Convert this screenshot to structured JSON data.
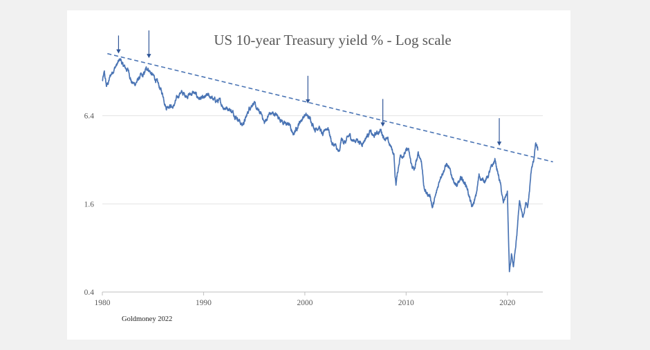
{
  "colors": {
    "series": "#4a74b4",
    "trendline": "#4a74b4",
    "arrow": "#2f5597",
    "grid": "#e3e3e3",
    "axis": "#bfbfbf",
    "text": "#595959"
  },
  "chart_data": {
    "type": "line",
    "title": "US 10-year Treasury yield % - Log scale",
    "source": "Goldmoney 2022",
    "xlabel": "",
    "ylabel": "",
    "x_scale": "time (years)",
    "y_scale": "log",
    "xlim": [
      1980,
      2023.5
    ],
    "ylim": [
      0.4,
      25.6
    ],
    "x_ticks": [
      "1980",
      "1990",
      "2000",
      "2010",
      "2020"
    ],
    "y_ticks": [
      "0.4",
      "1.6",
      "6.4"
    ],
    "grid": "horizontal",
    "legend": "none",
    "series": [
      {
        "x": [
          1980.0,
          1980.2,
          1980.4,
          1980.6,
          1980.8,
          1981.0,
          1981.2,
          1981.5,
          1981.7,
          1981.8,
          1982.0,
          1982.3,
          1982.6,
          1982.9,
          1983.2,
          1983.5,
          1983.8,
          1984.0,
          1984.3,
          1984.5,
          1984.8,
          1985.2,
          1985.6,
          1986.0,
          1986.3,
          1986.6,
          1987.0,
          1987.3,
          1987.7,
          1987.9,
          1988.3,
          1988.7,
          1989.0,
          1989.5,
          1990.0,
          1990.4,
          1990.7,
          1991.0,
          1991.6,
          1992.0,
          1992.5,
          1993.0,
          1993.5,
          1993.8,
          1994.2,
          1994.5,
          1994.9,
          1995.3,
          1995.8,
          1996.0,
          1996.5,
          1997.0,
          1997.5,
          1998.0,
          1998.5,
          1998.8,
          1999.0,
          1999.5,
          2000.0,
          2000.3,
          2000.6,
          2001.0,
          2001.4,
          2001.8,
          2002.0,
          2002.3,
          2002.7,
          2003.0,
          2003.4,
          2003.6,
          2004.0,
          2004.4,
          2004.8,
          2005.2,
          2005.6,
          2006.0,
          2006.4,
          2006.8,
          2007.0,
          2007.5,
          2007.8,
          2008.2,
          2008.5,
          2008.8,
          2008.9,
          2009.0,
          2009.4,
          2009.8,
          2010.2,
          2010.5,
          2010.8,
          2011.2,
          2011.5,
          2011.8,
          2012.0,
          2012.4,
          2012.6,
          2013.0,
          2013.4,
          2013.7,
          2014.0,
          2014.5,
          2015.0,
          2015.5,
          2016.0,
          2016.5,
          2016.9,
          2017.2,
          2017.6,
          2018.0,
          2018.4,
          2018.8,
          2019.0,
          2019.3,
          2019.6,
          2019.8,
          2020.0,
          2020.1,
          2020.2,
          2020.4,
          2020.6,
          2020.8,
          2021.0,
          2021.2,
          2021.5,
          2021.8,
          2022.0,
          2022.2,
          2022.4,
          2022.6,
          2022.8,
          2023.0
        ],
        "values": [
          11.0,
          12.5,
          10.2,
          10.8,
          12.0,
          12.8,
          13.5,
          14.5,
          15.2,
          15.6,
          14.2,
          13.5,
          13.0,
          10.8,
          10.5,
          11.2,
          12.0,
          11.8,
          13.2,
          13.6,
          12.5,
          11.5,
          10.2,
          8.8,
          7.3,
          7.6,
          7.3,
          8.2,
          9.3,
          9.1,
          8.8,
          9.0,
          9.2,
          8.5,
          8.3,
          8.8,
          8.6,
          8.2,
          8.0,
          7.3,
          7.2,
          6.6,
          6.0,
          5.5,
          6.2,
          7.2,
          7.9,
          7.0,
          6.4,
          5.7,
          6.6,
          6.6,
          6.2,
          5.6,
          5.6,
          4.7,
          5.0,
          5.8,
          6.5,
          6.3,
          6.0,
          5.2,
          5.4,
          4.6,
          5.2,
          5.3,
          4.1,
          4.0,
          3.5,
          4.4,
          4.2,
          4.7,
          4.3,
          4.4,
          4.1,
          4.5,
          5.0,
          4.6,
          4.8,
          5.1,
          4.6,
          4.3,
          3.9,
          3.5,
          2.5,
          2.2,
          3.4,
          3.5,
          3.8,
          3.0,
          2.7,
          3.5,
          3.2,
          2.0,
          1.9,
          1.8,
          1.5,
          1.9,
          2.5,
          2.7,
          3.0,
          2.5,
          2.1,
          2.4,
          2.1,
          1.5,
          1.8,
          2.5,
          2.3,
          2.4,
          2.8,
          3.2,
          2.7,
          2.2,
          1.6,
          1.8,
          1.9,
          1.0,
          0.55,
          0.7,
          0.6,
          0.75,
          1.1,
          1.7,
          1.3,
          1.6,
          1.5,
          2.0,
          2.9,
          3.1,
          4.1,
          3.7
        ],
        "noise_amplitude": 0.02
      }
    ],
    "trendline": {
      "style": "dashed",
      "x": [
        1980.5,
        2024.5
      ],
      "values": [
        17.0,
        3.1
      ]
    },
    "annotations": [
      {
        "type": "arrow",
        "x": 1981.6,
        "points_at": 15.8
      },
      {
        "type": "arrow",
        "x": 1984.6,
        "points_at": 14.7
      },
      {
        "type": "arrow",
        "x": 2000.3,
        "points_at": 7.2
      },
      {
        "type": "arrow",
        "x": 2007.7,
        "points_at": 5.0
      },
      {
        "type": "arrow",
        "x": 2019.2,
        "points_at": 3.7
      }
    ]
  }
}
